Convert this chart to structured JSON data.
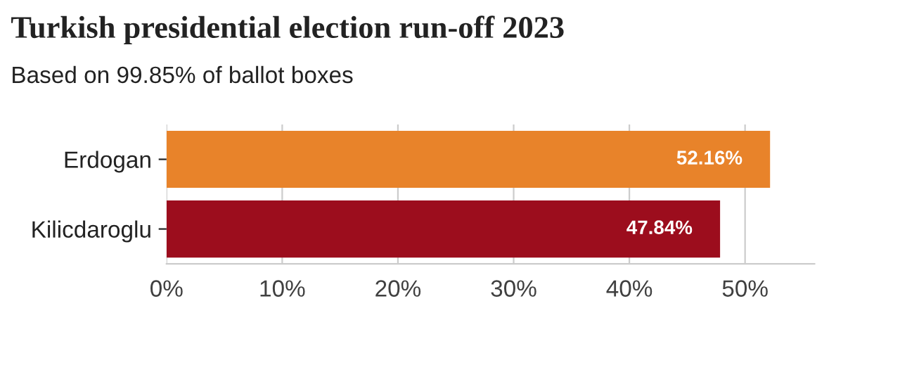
{
  "chart_data": {
    "type": "bar",
    "orientation": "horizontal",
    "title": "Turkish presidential election run-off 2023",
    "subtitle": "Based on 99.85% of ballot boxes",
    "categories": [
      "Erdogan",
      "Kilicdaroglu"
    ],
    "values": [
      52.16,
      47.84
    ],
    "colors": [
      "#e8832a",
      "#9c0d1d"
    ],
    "value_labels": [
      "52.16%",
      "47.84%"
    ],
    "xlim": [
      0,
      56
    ],
    "xticks": [
      {
        "value": 0,
        "label": "0%"
      },
      {
        "value": 10,
        "label": "10%"
      },
      {
        "value": 20,
        "label": "20%"
      },
      {
        "value": 30,
        "label": "30%"
      },
      {
        "value": 40,
        "label": "40%"
      },
      {
        "value": 50,
        "label": "50%"
      }
    ],
    "grid": "x",
    "legend": false
  }
}
